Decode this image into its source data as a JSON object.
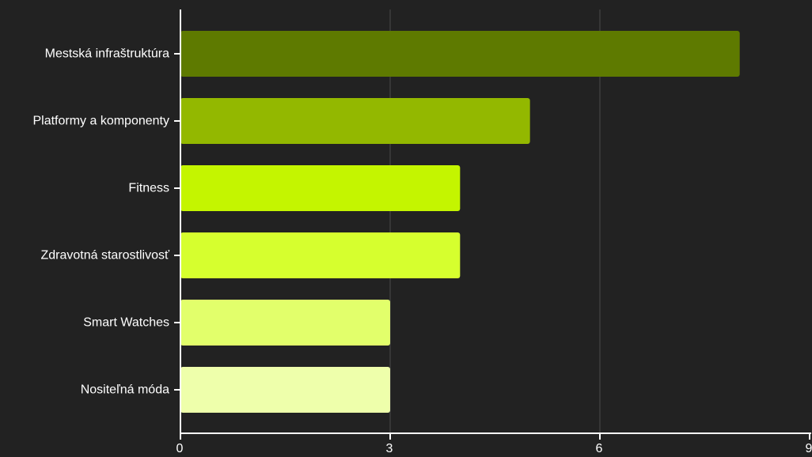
{
  "chart_data": {
    "type": "bar",
    "orientation": "horizontal",
    "categories": [
      "Mestská infraštruktúra",
      "Platformy a komponenty",
      "Fitness",
      "Zdravotná starostlivosť",
      "Smart Watches",
      "Nositeľná móda"
    ],
    "values": [
      8,
      5,
      4,
      4,
      3,
      3
    ],
    "colors": [
      "#5e7a00",
      "#93b800",
      "#c4f500",
      "#d6ff2e",
      "#e2ff6b",
      "#eeffab"
    ],
    "xlim": [
      0,
      9
    ],
    "xticks": [
      0,
      3,
      6,
      9
    ],
    "grid": true,
    "legend": "none"
  },
  "style": {
    "background": "#222222",
    "axis_color": "#ffffff",
    "grid_color": "#4a4a4a"
  }
}
